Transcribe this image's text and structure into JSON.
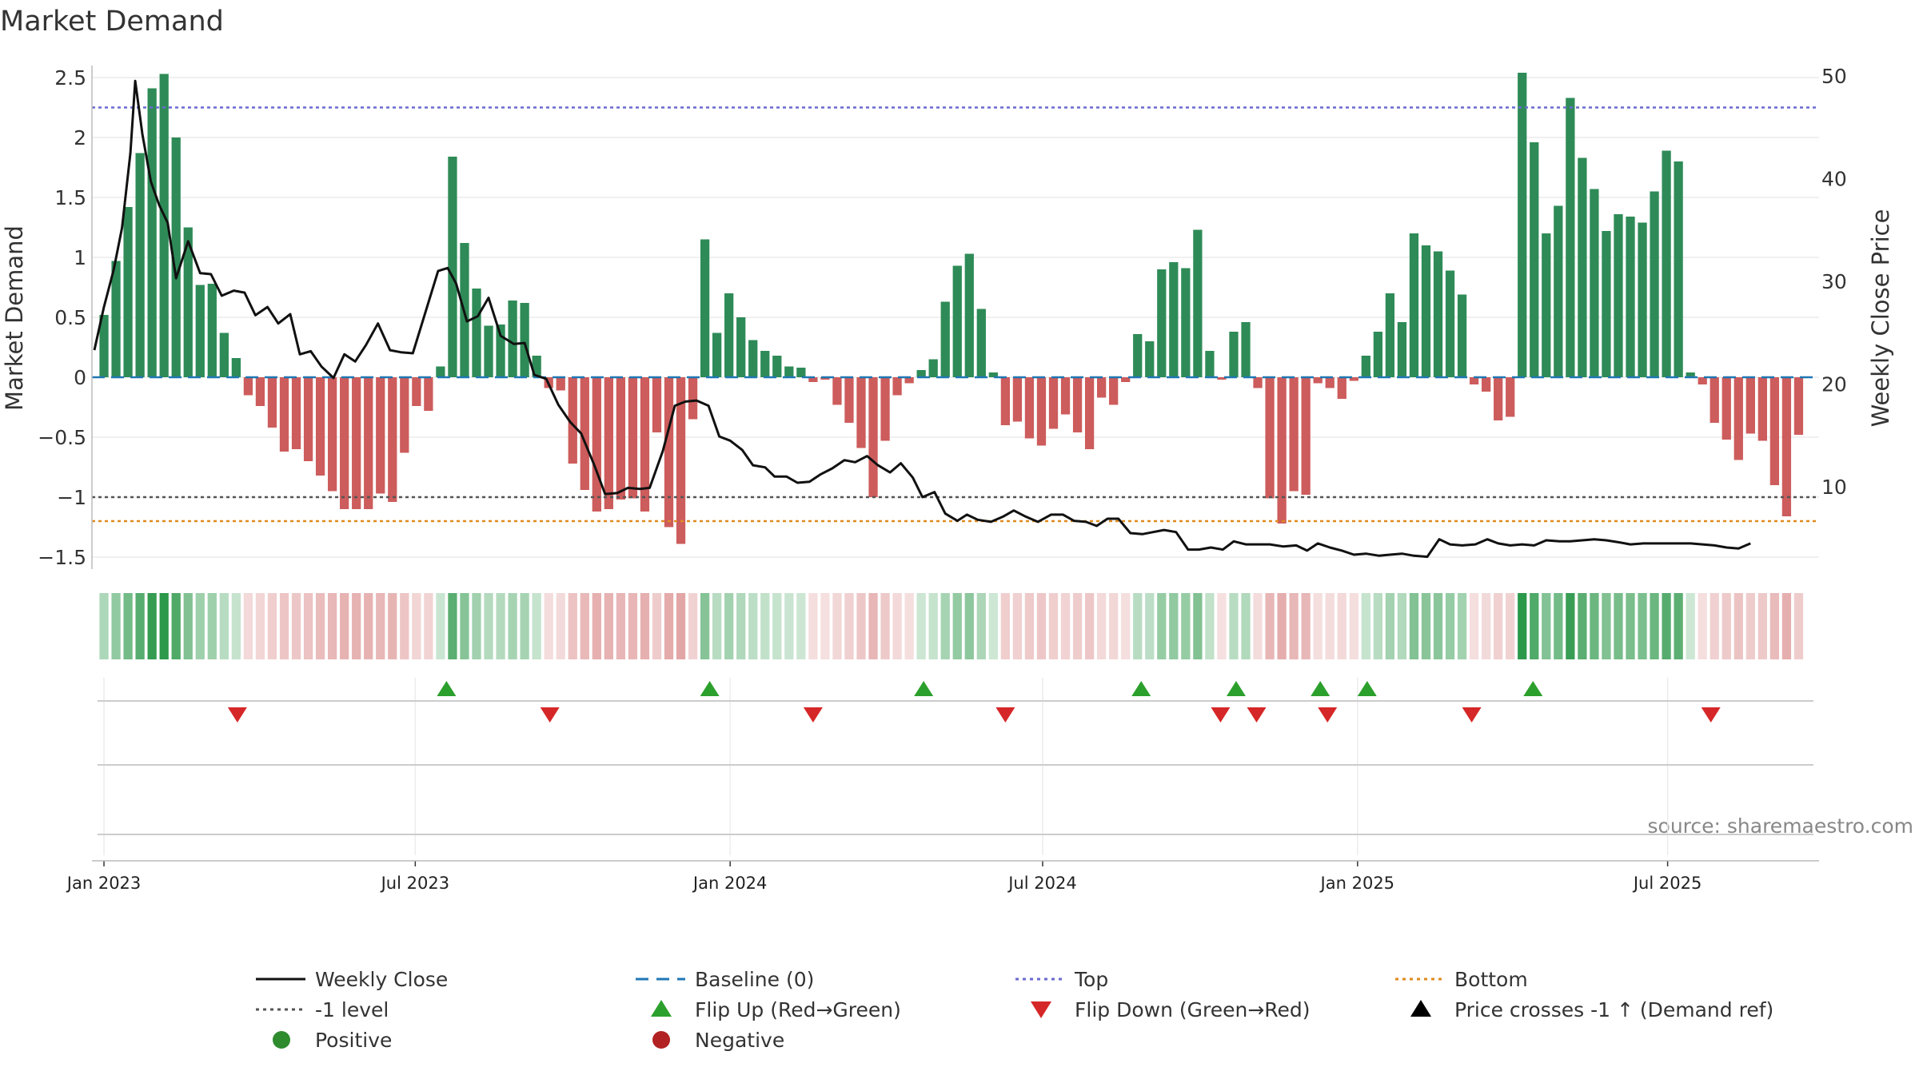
{
  "chart_data": {
    "type": "bar",
    "title": "Market Demand",
    "ylabel_left": "Market Demand",
    "ylabel_right": "Weekly Close Price",
    "source": "source: sharemaestro.com",
    "ylim_left": [
      -1.6,
      2.6
    ],
    "ylim_right": [
      2,
      51
    ],
    "yticks_left": [
      "2.5",
      "2",
      "1.5",
      "1",
      "0.5",
      "0",
      "−0.5",
      "−1",
      "−1.5"
    ],
    "yticks_left_values": [
      2.5,
      2,
      1.5,
      1,
      0.5,
      0,
      -0.5,
      -1,
      -1.5
    ],
    "yticks_right": [
      "50",
      "40",
      "30",
      "20",
      "10"
    ],
    "yticks_right_values": [
      50,
      40,
      30,
      20,
      10
    ],
    "x_range_weeks": [
      -1,
      142.7
    ],
    "xticks": [
      "Jan 2023",
      "Jul 2023",
      "Jan 2024",
      "Jul 2024",
      "Jan 2025",
      "Jul 2025"
    ],
    "xticks_weeks": [
      0,
      25.9,
      52.1,
      78.1,
      104.3,
      130.1
    ],
    "reference_lines": {
      "top": 2.25,
      "bottom": -1.2,
      "minus_one": -1
    },
    "colors": {
      "positive": "#2e8b57",
      "negative": "#cd5c5c",
      "price": "#111111",
      "top": "#6a6ad0",
      "bottom": "#e08a1e",
      "minus_one": "#555555",
      "baseline": "#1f77b4",
      "flip_up": "#2ca02c",
      "flip_down": "#d62728"
    },
    "demand": [
      0.52,
      0.97,
      1.42,
      1.87,
      2.41,
      2.53,
      2.0,
      1.25,
      0.77,
      0.78,
      0.37,
      0.16,
      -0.15,
      -0.24,
      -0.42,
      -0.62,
      -0.6,
      -0.7,
      -0.82,
      -0.95,
      -1.1,
      -1.1,
      -1.1,
      -0.97,
      -1.04,
      -0.63,
      -0.24,
      -0.28,
      0.09,
      1.84,
      1.12,
      0.74,
      0.43,
      0.44,
      0.64,
      0.62,
      0.18,
      -0.09,
      -0.11,
      -0.72,
      -0.94,
      -1.12,
      -1.1,
      -1.02,
      -1.01,
      -1.12,
      -0.46,
      -1.25,
      -1.39,
      -0.35,
      1.15,
      0.37,
      0.7,
      0.5,
      0.31,
      0.22,
      0.18,
      0.09,
      0.08,
      -0.04,
      -0.02,
      -0.23,
      -0.38,
      -0.59,
      -1.0,
      -0.53,
      -0.15,
      -0.05,
      0.06,
      0.15,
      0.63,
      0.93,
      1.03,
      0.57,
      0.04,
      -0.4,
      -0.37,
      -0.51,
      -0.57,
      -0.43,
      -0.31,
      -0.46,
      -0.6,
      -0.17,
      -0.23,
      -0.04,
      0.36,
      0.3,
      0.9,
      0.96,
      0.91,
      1.23,
      0.22,
      -0.02,
      0.38,
      0.46,
      -0.09,
      -1.01,
      -1.22,
      -0.95,
      -0.98,
      -0.05,
      -0.09,
      -0.18,
      -0.03,
      0.18,
      0.38,
      0.7,
      0.46,
      1.2,
      1.1,
      1.05,
      0.89,
      0.69,
      -0.06,
      -0.12,
      -0.36,
      -0.33,
      2.54,
      1.96,
      1.2,
      1.43,
      2.33,
      1.83,
      1.57,
      1.22,
      1.36,
      1.34,
      1.29,
      1.55,
      1.89,
      1.8,
      0.04,
      -0.06,
      -0.38,
      -0.52,
      -0.69,
      -0.47,
      -0.53,
      -0.9,
      -1.16,
      -0.48
    ],
    "price_weeks": [
      -0.8,
      0,
      0.8,
      1.5,
      2.2,
      2.6,
      3.2,
      3.9,
      4.6,
      5.3,
      6,
      7,
      8,
      8.9,
      9.8,
      10.8,
      11.7,
      12.6,
      13.6,
      14.5,
      15.5,
      16.3,
      17.2,
      18.1,
      19.1,
      20,
      20.9,
      21.8,
      22.8,
      23.8,
      24.7,
      25.7,
      27.8,
      28.6,
      29.3,
      30.2,
      31.1,
      32,
      33,
      34.1,
      35,
      35.8,
      36.8,
      37.8,
      38.8,
      39.7,
      40.8,
      41.7,
      42.7,
      43.6,
      44.6,
      45.4,
      46.5,
      47.5,
      48.4,
      49.3,
      50.3,
      51.2,
      52.1,
      53.1,
      54,
      55,
      55.8,
      56.8,
      57.7,
      58.7,
      59.6,
      60.6,
      61.6,
      62.5,
      63.5,
      64.4,
      65.4,
      66.3,
      67.3,
      68.1,
      69.1,
      70,
      71,
      71.8,
      72.7,
      73.8,
      74.8,
      75.7,
      76.7,
      77.7,
      78.8,
      79.8,
      80.7,
      81.7,
      82.6,
      83.5,
      84.4,
      85.4,
      86.4,
      87.3,
      88.2,
      89.2,
      90.2,
      91.1,
      92.1,
      93.1,
      94,
      95,
      96,
      97,
      98.1,
      99.2,
      100.1,
      101,
      102,
      103,
      104,
      105,
      106.1,
      107,
      108,
      109,
      110.1,
      111.1,
      112,
      113,
      114.1,
      115.1,
      116,
      117,
      118,
      119,
      120,
      121.1,
      122,
      123,
      124,
      125,
      126.1,
      127,
      128.1,
      129,
      130,
      131,
      132,
      133,
      134,
      135,
      136,
      137,
      138.1,
      139,
      140,
      141.3
    ],
    "price_values": [
      23.3,
      27.5,
      31.1,
      35.2,
      42.5,
      49.5,
      44.3,
      39.7,
      37.4,
      35.7,
      30.3,
      33.9,
      30.8,
      30.7,
      28.6,
      29.1,
      28.9,
      26.7,
      27.5,
      25.9,
      26.8,
      22.9,
      23.2,
      21.7,
      20.6,
      22.9,
      22.2,
      23.8,
      25.9,
      23.3,
      23.1,
      23.0,
      31.0,
      31.3,
      29.8,
      26.1,
      26.6,
      28.4,
      24.7,
      23.9,
      24.0,
      20.9,
      20.5,
      18.0,
      16.3,
      15.2,
      12.1,
      9.3,
      9.4,
      9.9,
      9.8,
      9.9,
      13.5,
      17.9,
      18.3,
      18.4,
      17.9,
      14.9,
      14.5,
      13.6,
      12.1,
      11.9,
      11.0,
      11.0,
      10.4,
      10.5,
      11.2,
      11.8,
      12.6,
      12.4,
      13.0,
      12.1,
      11.4,
      12.3,
      10.9,
      9.0,
      9.5,
      7.4,
      6.7,
      7.3,
      6.8,
      6.6,
      7.1,
      7.7,
      7.1,
      6.6,
      7.3,
      7.3,
      6.7,
      6.6,
      6.2,
      6.9,
      6.9,
      5.5,
      5.4,
      5.6,
      5.8,
      5.6,
      3.9,
      3.9,
      4.1,
      3.9,
      4.7,
      4.4,
      4.4,
      4.4,
      4.2,
      4.3,
      3.8,
      4.5,
      4.1,
      3.8,
      3.4,
      3.5,
      3.3,
      3.4,
      3.5,
      3.3,
      3.2,
      4.9,
      4.4,
      4.3,
      4.4,
      4.9,
      4.5,
      4.3,
      4.4,
      4.3,
      4.8,
      4.7,
      4.7,
      4.8,
      4.9,
      4.8,
      4.6,
      4.4,
      4.5,
      4.5,
      4.5,
      4.5,
      4.5,
      4.4,
      4.3,
      4.1,
      4.0,
      4.5
    ],
    "flip_up_weeks": [
      28.5,
      50.4,
      68.2,
      86.3,
      94.2,
      101.2,
      105.1,
      118.9
    ],
    "flip_down_weeks": [
      11.1,
      37.1,
      59.0,
      75.0,
      92.9,
      95.9,
      101.8,
      113.8,
      133.7
    ],
    "legend": [
      {
        "label": "Weekly Close",
        "kind": "line",
        "color": "#111111"
      },
      {
        "label": "Baseline (0)",
        "kind": "dash",
        "color": "#1f77b4"
      },
      {
        "label": "Top",
        "kind": "dot",
        "color": "#6a6ad0"
      },
      {
        "label": "Bottom",
        "kind": "dot",
        "color": "#e08a1e"
      },
      {
        "label": "-1 level",
        "kind": "dot",
        "color": "#555555"
      },
      {
        "label": "Flip Up (Red→Green)",
        "kind": "tri-up",
        "color": "#2ca02c"
      },
      {
        "label": "Flip Down (Green→Red)",
        "kind": "tri-down",
        "color": "#d62728"
      },
      {
        "label": "Price crosses -1 ↑ (Demand ref)",
        "kind": "tri-up",
        "color": "#000000"
      },
      {
        "label": "Positive",
        "kind": "circle",
        "color": "#2e8b2e"
      },
      {
        "label": "Negative",
        "kind": "circle",
        "color": "#b22222"
      }
    ]
  }
}
